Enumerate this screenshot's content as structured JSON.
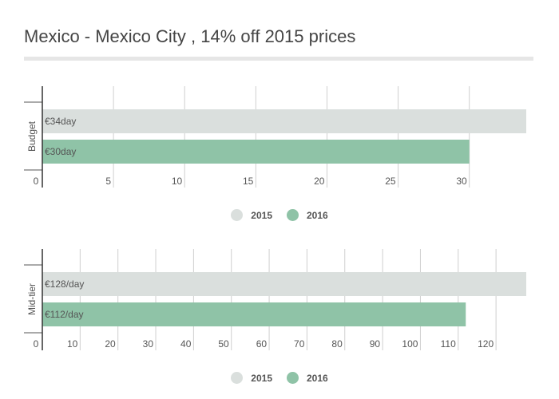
{
  "title": "Mexico - Mexico City , 14% off 2015 prices",
  "colors": {
    "y2015": "#dadfdd",
    "y2016": "#8fc3a7"
  },
  "chart_data": [
    {
      "type": "bar",
      "orientation": "horizontal",
      "category": "Budget",
      "series": [
        {
          "name": "2015",
          "value": 34,
          "label": "€34day"
        },
        {
          "name": "2016",
          "value": 30,
          "label": "€30day"
        }
      ],
      "xticks": [
        0,
        5,
        10,
        15,
        20,
        25,
        30
      ],
      "xlim": [
        0,
        34
      ],
      "legend": [
        "2015",
        "2016"
      ],
      "legend_position": "bottom"
    },
    {
      "type": "bar",
      "orientation": "horizontal",
      "category": "Mid-tier",
      "series": [
        {
          "name": "2015",
          "value": 128,
          "label": "€128/day"
        },
        {
          "name": "2016",
          "value": 112,
          "label": "€112/day"
        }
      ],
      "xticks": [
        0,
        10,
        20,
        30,
        40,
        50,
        60,
        70,
        80,
        90,
        100,
        110,
        120
      ],
      "xlim": [
        0,
        128
      ],
      "legend": [
        "2015",
        "2016"
      ],
      "legend_position": "bottom"
    }
  ]
}
